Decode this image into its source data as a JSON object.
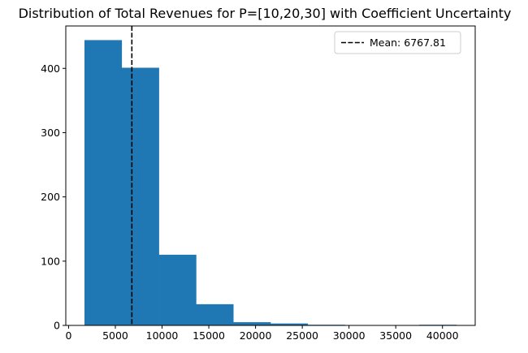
{
  "chart_data": {
    "type": "bar",
    "title": "Distribution of Total Revenues for P=[10,20,30] with Coefficient Uncertainty",
    "xlabel": "",
    "ylabel": "",
    "bins": [
      {
        "x0": 1700,
        "x1": 5680,
        "count": 444
      },
      {
        "x0": 5680,
        "x1": 9660,
        "count": 401
      },
      {
        "x0": 9660,
        "x1": 13640,
        "count": 110
      },
      {
        "x0": 13640,
        "x1": 17620,
        "count": 33
      },
      {
        "x0": 17620,
        "x1": 21600,
        "count": 5
      },
      {
        "x0": 21600,
        "x1": 25580,
        "count": 3
      },
      {
        "x0": 25580,
        "x1": 29560,
        "count": 1
      },
      {
        "x0": 29560,
        "x1": 33540,
        "count": 0
      },
      {
        "x0": 33540,
        "x1": 37520,
        "count": 0
      },
      {
        "x0": 37520,
        "x1": 41500,
        "count": 1
      }
    ],
    "bar_color": "#1f77b4",
    "mean": {
      "value": 6767.81,
      "label": "Mean: 6767.81",
      "color": "#000000",
      "style": "dashed"
    },
    "xlim": [
      -300,
      43500
    ],
    "ylim": [
      0,
      466
    ],
    "xticks": [
      0,
      5000,
      10000,
      15000,
      20000,
      25000,
      30000,
      35000,
      40000
    ],
    "xtick_labels": [
      "0",
      "5000",
      "10000",
      "15000",
      "20000",
      "25000",
      "30000",
      "35000",
      "40000"
    ],
    "yticks": [
      0,
      100,
      200,
      300,
      400
    ],
    "ytick_labels": [
      "0",
      "100",
      "200",
      "300",
      "400"
    ],
    "legend": {
      "placement": "top-right"
    },
    "grid": false
  }
}
